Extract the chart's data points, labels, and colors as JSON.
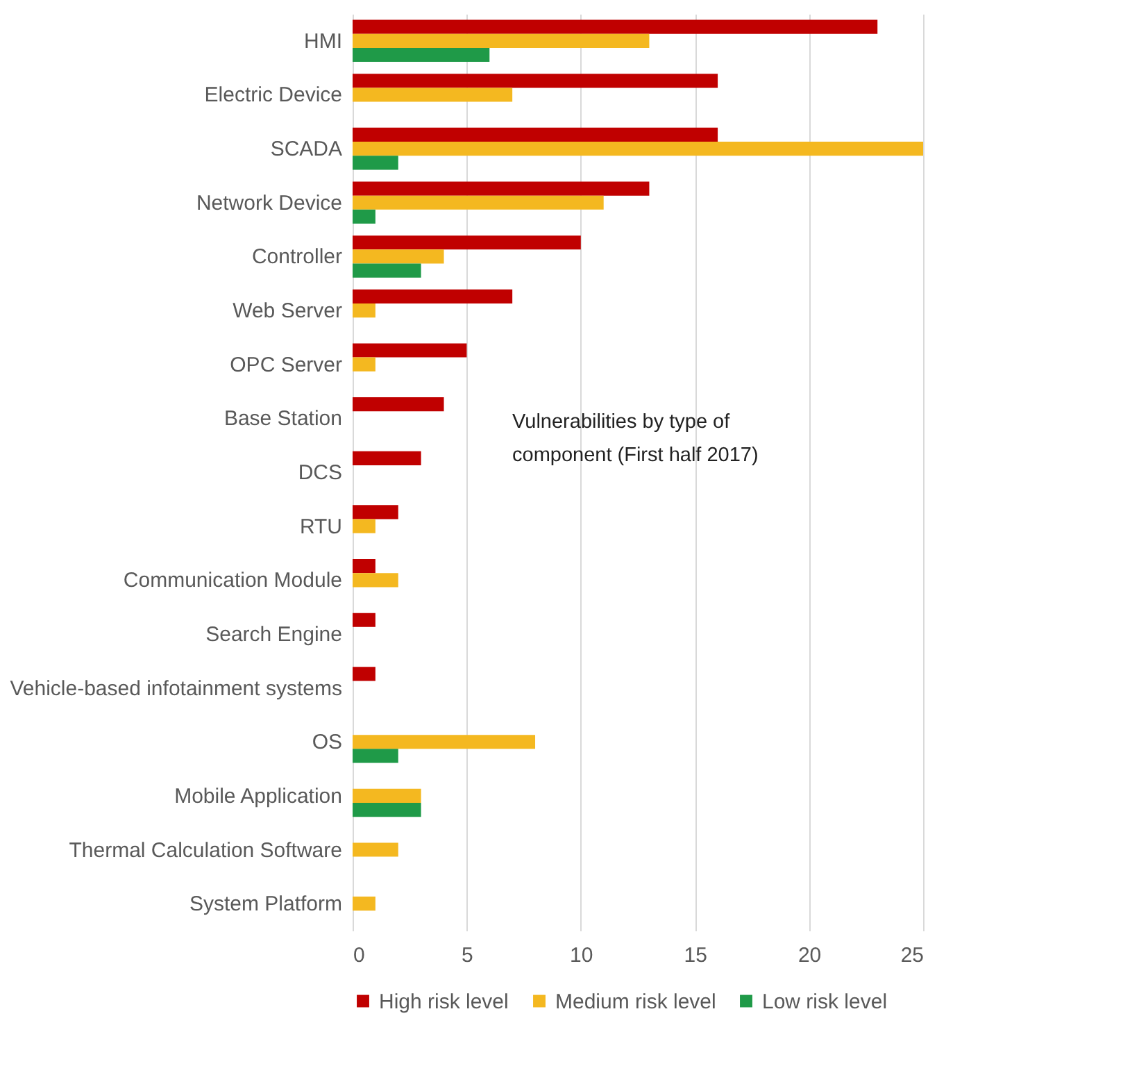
{
  "chart_data": {
    "type": "bar",
    "orientation": "horizontal",
    "categories": [
      "HMI",
      "Electric Device",
      "SCADA",
      "Network Device",
      "Controller",
      "Web Server",
      "OPC Server",
      "Base Station",
      "DCS",
      "RTU",
      "Communication Module",
      "Search Engine",
      "Vehicle-based infotainment systems",
      "OS",
      "Mobile Application",
      "Thermal Calculation Software",
      "System Platform"
    ],
    "series": [
      {
        "name": "High risk level",
        "color": "#c00000",
        "values": [
          23,
          16,
          16,
          13,
          10,
          7,
          5,
          4,
          3,
          2,
          1,
          1,
          1,
          0,
          0,
          0,
          0
        ]
      },
      {
        "name": "Medium risk level",
        "color": "#f4b820",
        "values": [
          13,
          7,
          25,
          11,
          4,
          1,
          1,
          0,
          0,
          1,
          2,
          0,
          0,
          8,
          3,
          2,
          1
        ]
      },
      {
        "name": "Low risk level",
        "color": "#1f9a48",
        "values": [
          6,
          0,
          2,
          1,
          3,
          0,
          0,
          0,
          0,
          0,
          0,
          0,
          0,
          2,
          3,
          0,
          0
        ]
      }
    ],
    "xlim": [
      0,
      25
    ],
    "xticks": [
      0,
      5,
      10,
      15,
      20,
      25
    ],
    "grid": "x",
    "legend": "bottom",
    "annotations": [
      "Vulnerabilities by type of component (First half 2017)"
    ]
  }
}
